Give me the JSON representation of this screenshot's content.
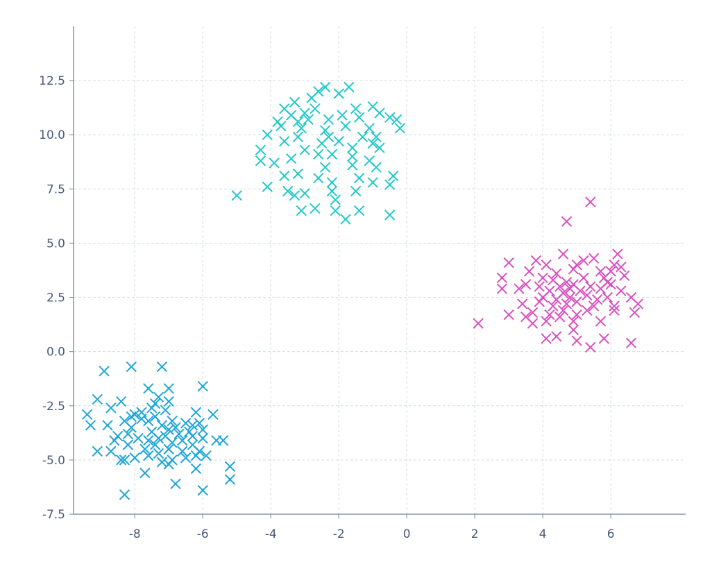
{
  "chart_data": {
    "type": "scatter",
    "title": "",
    "xlabel": "",
    "ylabel": "",
    "xlim": [
      -9.8,
      8.2
    ],
    "ylim": [
      -7.5,
      15.0
    ],
    "x_ticks": [
      -8,
      -6,
      -4,
      -2,
      0,
      2,
      4,
      6
    ],
    "y_ticks": [
      -7.5,
      -5.0,
      -2.5,
      0.0,
      2.5,
      5.0,
      7.5,
      10.0,
      12.5
    ],
    "x_tick_labels": [
      "-8",
      "-6",
      "-4",
      "-2",
      "0",
      "2",
      "4",
      "6"
    ],
    "y_tick_labels": [
      "-7.5",
      "-5.0",
      "-2.5",
      "0.0",
      "2.5",
      "5.0",
      "7.5",
      "10.0",
      "12.5"
    ],
    "grid": true,
    "marker": "x",
    "series": [
      {
        "color": "#1fa6d6",
        "points": [
          [
            -8.1,
            -0.7
          ],
          [
            -7.2,
            -0.7
          ],
          [
            -8.9,
            -0.9
          ],
          [
            -6.0,
            -1.6
          ],
          [
            -7.6,
            -1.7
          ],
          [
            -7.0,
            -1.7
          ],
          [
            -9.1,
            -2.2
          ],
          [
            -8.4,
            -2.3
          ],
          [
            -7.3,
            -2.1
          ],
          [
            -7.0,
            -2.3
          ],
          [
            -6.2,
            -2.8
          ],
          [
            -5.7,
            -2.9
          ],
          [
            -8.7,
            -2.6
          ],
          [
            -8.0,
            -2.9
          ],
          [
            -7.8,
            -2.8
          ],
          [
            -7.5,
            -2.6
          ],
          [
            -7.4,
            -3.0
          ],
          [
            -7.1,
            -2.7
          ],
          [
            -9.4,
            -2.9
          ],
          [
            -9.3,
            -3.4
          ],
          [
            -8.8,
            -3.4
          ],
          [
            -8.3,
            -3.2
          ],
          [
            -8.1,
            -3.0
          ],
          [
            -7.6,
            -3.2
          ],
          [
            -7.2,
            -3.4
          ],
          [
            -6.9,
            -3.2
          ],
          [
            -6.5,
            -3.3
          ],
          [
            -6.3,
            -3.4
          ],
          [
            -6.1,
            -3.3
          ],
          [
            -6.0,
            -3.6
          ],
          [
            -8.5,
            -3.9
          ],
          [
            -8.2,
            -3.8
          ],
          [
            -7.9,
            -4.0
          ],
          [
            -7.5,
            -3.7
          ],
          [
            -7.3,
            -4.0
          ],
          [
            -7.1,
            -3.9
          ],
          [
            -6.9,
            -4.2
          ],
          [
            -6.7,
            -3.8
          ],
          [
            -6.3,
            -3.9
          ],
          [
            -6.0,
            -4.0
          ],
          [
            -5.6,
            -4.1
          ],
          [
            -5.4,
            -4.1
          ],
          [
            -8.6,
            -4.1
          ],
          [
            -8.2,
            -4.3
          ],
          [
            -7.7,
            -4.5
          ],
          [
            -7.4,
            -4.3
          ],
          [
            -7.0,
            -4.5
          ],
          [
            -6.6,
            -4.6
          ],
          [
            -6.3,
            -4.3
          ],
          [
            -6.1,
            -4.6
          ],
          [
            -8.7,
            -4.6
          ],
          [
            -8.4,
            -5.0
          ],
          [
            -8.0,
            -4.9
          ],
          [
            -7.6,
            -4.8
          ],
          [
            -7.3,
            -4.7
          ],
          [
            -7.2,
            -5.1
          ],
          [
            -6.9,
            -5.0
          ],
          [
            -6.5,
            -4.9
          ],
          [
            -6.2,
            -4.8
          ],
          [
            -5.9,
            -4.8
          ],
          [
            -9.1,
            -4.6
          ],
          [
            -8.3,
            -5.0
          ],
          [
            -7.0,
            -5.2
          ],
          [
            -6.2,
            -5.4
          ],
          [
            -5.2,
            -5.3
          ],
          [
            -7.7,
            -5.6
          ],
          [
            -6.8,
            -6.1
          ],
          [
            -5.2,
            -5.9
          ],
          [
            -6.0,
            -6.4
          ],
          [
            -8.3,
            -6.6
          ],
          [
            -7.8,
            -3.1
          ],
          [
            -7.4,
            -2.4
          ],
          [
            -7.0,
            -3.6
          ],
          [
            -6.6,
            -4.1
          ],
          [
            -8.1,
            -3.5
          ],
          [
            -6.4,
            -3.7
          ],
          [
            -7.6,
            -4.1
          ],
          [
            -6.8,
            -3.5
          ]
        ]
      },
      {
        "color": "#22c8c8",
        "points": [
          [
            -2.4,
            12.2
          ],
          [
            -1.7,
            12.2
          ],
          [
            -2.6,
            12.0
          ],
          [
            -2.0,
            11.9
          ],
          [
            -2.8,
            11.7
          ],
          [
            -3.3,
            11.5
          ],
          [
            -3.6,
            11.2
          ],
          [
            -3.0,
            11.0
          ],
          [
            -2.7,
            11.2
          ],
          [
            -1.5,
            11.2
          ],
          [
            -1.0,
            11.3
          ],
          [
            -3.4,
            10.9
          ],
          [
            -3.2,
            10.6
          ],
          [
            -2.3,
            10.7
          ],
          [
            -1.9,
            10.9
          ],
          [
            -1.4,
            10.8
          ],
          [
            -0.8,
            11.0
          ],
          [
            -0.5,
            10.8
          ],
          [
            -0.3,
            10.7
          ],
          [
            -3.7,
            10.4
          ],
          [
            -3.1,
            10.3
          ],
          [
            -2.4,
            10.2
          ],
          [
            -1.8,
            10.4
          ],
          [
            -1.1,
            10.3
          ],
          [
            -0.2,
            10.3
          ],
          [
            -4.1,
            10.0
          ],
          [
            -3.6,
            9.7
          ],
          [
            -3.2,
            9.9
          ],
          [
            -2.3,
            9.9
          ],
          [
            -2.0,
            9.7
          ],
          [
            -1.3,
            9.9
          ],
          [
            -0.9,
            9.9
          ],
          [
            -1.0,
            9.6
          ],
          [
            -4.3,
            9.3
          ],
          [
            -3.0,
            9.3
          ],
          [
            -2.6,
            9.1
          ],
          [
            -2.2,
            9.1
          ],
          [
            -1.6,
            9.0
          ],
          [
            -0.8,
            9.4
          ],
          [
            -4.3,
            8.8
          ],
          [
            -3.9,
            8.7
          ],
          [
            -3.4,
            8.9
          ],
          [
            -2.4,
            8.5
          ],
          [
            -1.6,
            8.6
          ],
          [
            -1.1,
            8.8
          ],
          [
            -0.9,
            8.5
          ],
          [
            -3.6,
            8.1
          ],
          [
            -3.2,
            8.2
          ],
          [
            -2.6,
            8.0
          ],
          [
            -2.2,
            7.8
          ],
          [
            -1.4,
            8.0
          ],
          [
            -1.0,
            7.8
          ],
          [
            -0.4,
            8.1
          ],
          [
            -4.1,
            7.6
          ],
          [
            -3.5,
            7.4
          ],
          [
            -3.0,
            7.3
          ],
          [
            -2.2,
            7.4
          ],
          [
            -1.5,
            7.4
          ],
          [
            -0.5,
            7.7
          ],
          [
            -5.0,
            7.2
          ],
          [
            -3.3,
            7.2
          ],
          [
            -2.1,
            7.0
          ],
          [
            -2.7,
            6.6
          ],
          [
            -3.1,
            6.5
          ],
          [
            -2.1,
            6.5
          ],
          [
            -1.4,
            6.5
          ],
          [
            -1.8,
            6.1
          ],
          [
            -0.5,
            6.3
          ],
          [
            -2.9,
            10.7
          ],
          [
            -3.8,
            10.6
          ],
          [
            -1.6,
            9.4
          ],
          [
            -2.5,
            9.6
          ]
        ]
      },
      {
        "color": "#d94fbf",
        "points": [
          [
            5.4,
            6.9
          ],
          [
            4.7,
            6.0
          ],
          [
            6.2,
            4.5
          ],
          [
            4.6,
            4.5
          ],
          [
            5.5,
            4.3
          ],
          [
            5.2,
            4.2
          ],
          [
            3.8,
            4.2
          ],
          [
            3.0,
            4.1
          ],
          [
            4.1,
            4.0
          ],
          [
            5.0,
            4.0
          ],
          [
            6.1,
            4.0
          ],
          [
            6.3,
            3.9
          ],
          [
            3.6,
            3.7
          ],
          [
            4.4,
            3.6
          ],
          [
            4.9,
            3.8
          ],
          [
            5.7,
            3.7
          ],
          [
            6.0,
            3.7
          ],
          [
            2.8,
            3.4
          ],
          [
            4.0,
            3.4
          ],
          [
            4.3,
            3.3
          ],
          [
            4.7,
            3.2
          ],
          [
            5.2,
            3.4
          ],
          [
            5.8,
            3.4
          ],
          [
            6.4,
            3.5
          ],
          [
            3.5,
            3.1
          ],
          [
            3.9,
            3.0
          ],
          [
            4.5,
            3.0
          ],
          [
            4.9,
            3.1
          ],
          [
            5.4,
            3.0
          ],
          [
            6.0,
            3.1
          ],
          [
            2.8,
            2.9
          ],
          [
            3.3,
            2.9
          ],
          [
            4.2,
            2.8
          ],
          [
            4.6,
            2.7
          ],
          [
            5.1,
            2.8
          ],
          [
            5.7,
            2.9
          ],
          [
            6.3,
            2.8
          ],
          [
            4.0,
            2.5
          ],
          [
            4.4,
            2.4
          ],
          [
            4.8,
            2.5
          ],
          [
            5.3,
            2.6
          ],
          [
            5.6,
            2.4
          ],
          [
            5.9,
            2.5
          ],
          [
            6.6,
            2.5
          ],
          [
            3.4,
            2.2
          ],
          [
            3.9,
            2.3
          ],
          [
            4.3,
            2.1
          ],
          [
            4.7,
            2.2
          ],
          [
            5.0,
            2.3
          ],
          [
            5.5,
            2.1
          ],
          [
            6.1,
            2.1
          ],
          [
            6.8,
            2.2
          ],
          [
            3.7,
            1.8
          ],
          [
            4.2,
            1.7
          ],
          [
            4.6,
            1.9
          ],
          [
            5.0,
            1.7
          ],
          [
            5.3,
            1.9
          ],
          [
            6.1,
            1.9
          ],
          [
            6.7,
            1.8
          ],
          [
            3.0,
            1.7
          ],
          [
            3.5,
            1.6
          ],
          [
            4.1,
            1.4
          ],
          [
            4.5,
            1.6
          ],
          [
            4.9,
            1.4
          ],
          [
            5.7,
            1.4
          ],
          [
            2.1,
            1.3
          ],
          [
            3.7,
            1.3
          ],
          [
            4.9,
            1.0
          ],
          [
            4.4,
            0.7
          ],
          [
            4.1,
            0.6
          ],
          [
            5.0,
            0.5
          ],
          [
            5.8,
            0.6
          ],
          [
            6.6,
            0.4
          ],
          [
            5.4,
            0.2
          ],
          [
            4.8,
            2.9
          ],
          [
            5.9,
            3.2
          ]
        ]
      }
    ]
  }
}
